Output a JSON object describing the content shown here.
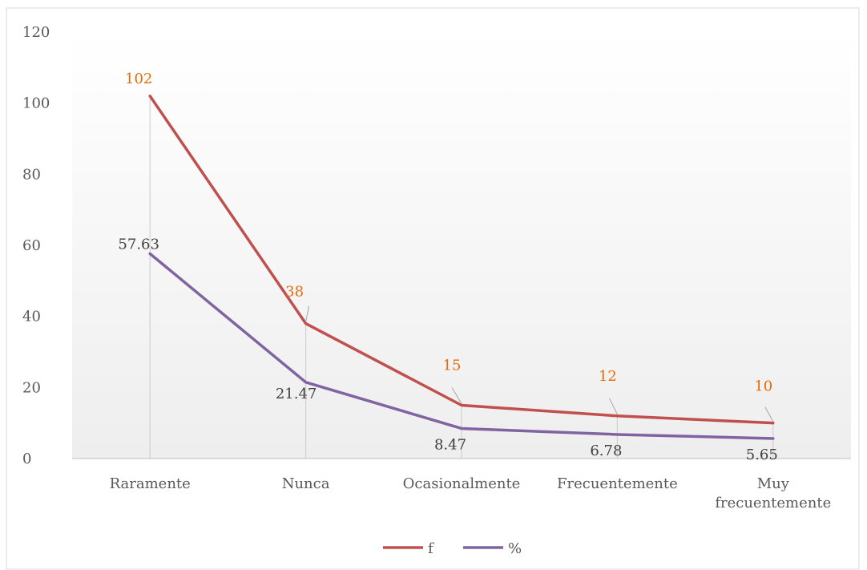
{
  "chart_data": {
    "type": "line",
    "categories": [
      "Raramente",
      "Nunca",
      "Ocasionalmente",
      "Frecuentemente",
      "Muy frecuentemente"
    ],
    "category_lines": [
      [
        "Raramente"
      ],
      [
        "Nunca"
      ],
      [
        "Ocasionalmente"
      ],
      [
        "Frecuentemente"
      ],
      [
        "Muy",
        "frecuentemente"
      ]
    ],
    "series": [
      {
        "name": "f",
        "values": [
          102,
          38,
          15,
          12,
          10
        ],
        "labels": [
          "102",
          "38",
          "15",
          "12",
          "10"
        ],
        "color": "#c0504d",
        "label_color": "#e46c0a"
      },
      {
        "name": "%",
        "values": [
          57.63,
          21.47,
          8.47,
          6.78,
          5.65
        ],
        "labels": [
          "57.63",
          "21.47",
          "8.47",
          "6.78",
          "5.65"
        ],
        "color": "#8064a2",
        "label_color": "#404040"
      }
    ],
    "yticks": [
      "0",
      "20",
      "40",
      "60",
      "80",
      "100",
      "120"
    ],
    "ylim": [
      0,
      120
    ],
    "title": "",
    "xlabel": "",
    "ylabel": "",
    "legend_position": "bottom",
    "grid": false,
    "drop_lines": true
  }
}
